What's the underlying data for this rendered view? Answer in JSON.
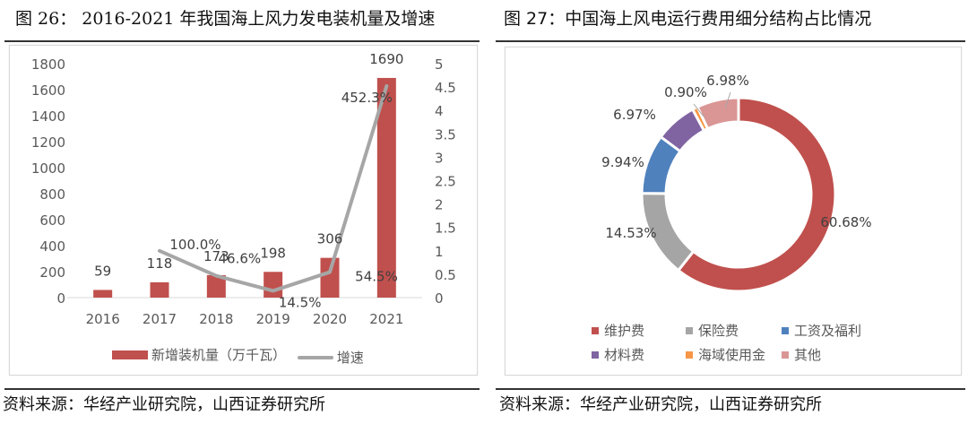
{
  "figures": {
    "left": {
      "title": "图 26： 2016-2021 年我国海上风力发电装机量及增速",
      "source": "资料来源：华经产业研究院，山西证券研究所"
    },
    "right": {
      "title": "图 27：中国海上风电运行费用细分结构占比情况",
      "source": "资料来源：华经产业研究院，山西证券研究所"
    }
  },
  "colors": {
    "bar": "#C0504D",
    "line": "#A6A6A6",
    "axis_text": "#595959"
  },
  "chart_data": [
    {
      "type": "bar",
      "combo": "bar+line (dual axis)",
      "title": "2016-2021 年我国海上风力发电装机量及增速",
      "categories": [
        "2016",
        "2017",
        "2018",
        "2019",
        "2020",
        "2021"
      ],
      "series": [
        {
          "name": "新增装机量（万千瓦）",
          "type": "bar",
          "axis": "left",
          "values": [
            59,
            118,
            173,
            198,
            306,
            1690
          ],
          "labels": [
            "59",
            "118",
            "173",
            "198",
            "306",
            "1690"
          ]
        },
        {
          "name": "增速",
          "type": "line",
          "axis": "right",
          "values": [
            null,
            1.0,
            0.466,
            0.145,
            0.545,
            4.523
          ],
          "labels": [
            "",
            "100.0%",
            "46.6%",
            "14.5%",
            "54.5%",
            "452.3%"
          ]
        }
      ],
      "y_left": {
        "ylim": [
          0,
          1800
        ],
        "ticks": [
          "0",
          "200",
          "400",
          "600",
          "800",
          "1000",
          "1200",
          "1400",
          "1600",
          "1800"
        ]
      },
      "y_right": {
        "ylim": [
          0,
          5
        ],
        "ticks": [
          "0",
          "0.5",
          "1",
          "1.5",
          "2",
          "2.5",
          "3",
          "3.5",
          "4",
          "4.5",
          "5"
        ]
      },
      "xlabel": "",
      "ylabel": "",
      "grid": false,
      "legend": {
        "position": "bottom",
        "entries": [
          "新增装机量（万千瓦）",
          "增速"
        ]
      }
    },
    {
      "type": "pie",
      "subtype": "donut",
      "title": "中国海上风电运行费用细分结构占比情况",
      "categories": [
        "维护费",
        "保险费",
        "工资及福利",
        "材料费",
        "海域使用金",
        "其他"
      ],
      "values": [
        60.68,
        14.53,
        9.94,
        6.97,
        0.9,
        6.98
      ],
      "labels": [
        "60.68%",
        "14.53%",
        "9.94%",
        "6.97%",
        "0.90%",
        "6.98%"
      ],
      "colors": [
        "#C0504D",
        "#A5A5A5",
        "#4F81BD",
        "#8064A2",
        "#F79646",
        "#DA9694"
      ],
      "legend": {
        "position": "bottom"
      }
    }
  ]
}
